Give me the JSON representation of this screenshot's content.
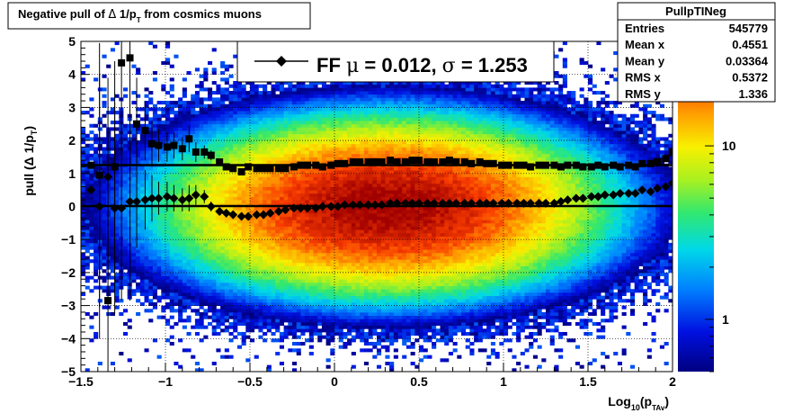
{
  "title": {
    "text": "Negative pull of ",
    "delta": "Δ",
    "text2": " 1/p",
    "sub": "T",
    "text3": " from cosmics muons"
  },
  "stats_box": {
    "name": "PullpTINeg",
    "rows": [
      {
        "label": "Entries",
        "value": "545779"
      },
      {
        "label": "Mean x",
        "value": "0.4551"
      },
      {
        "label": "Mean y",
        "value": "0.03364"
      },
      {
        "label": "RMS x",
        "value": "0.5372"
      },
      {
        "label": "RMS y",
        "value": "1.336"
      }
    ]
  },
  "legend": {
    "prefix": "FF ",
    "mu": "μ",
    "mid": " =  0.012, ",
    "sigma": "σ",
    "end": " =   1.253"
  },
  "chart_data": {
    "type": "heatmap",
    "xlabel": {
      "main": "Log",
      "sub1": "10",
      "paren_open": "(p",
      "sub2": "TAv",
      "paren_close": ")"
    },
    "ylabel": {
      "main": "pull (Δ 1/p",
      "sub": "T",
      "close": ")"
    },
    "xlim": [
      -1.5,
      2.0
    ],
    "ylim": [
      -5,
      5
    ],
    "x_ticks": [
      {
        "v": -1.5,
        "label": "−1.5"
      },
      {
        "v": -1.0,
        "label": "−1"
      },
      {
        "v": -0.5,
        "label": "−0.5"
      },
      {
        "v": 0.0,
        "label": "0"
      },
      {
        "v": 0.5,
        "label": "0.5"
      },
      {
        "v": 1.0,
        "label": "1"
      },
      {
        "v": 1.5,
        "label": "1.5"
      },
      {
        "v": 2.0,
        "label": "2"
      }
    ],
    "y_ticks": [
      {
        "v": -5,
        "label": "−5"
      },
      {
        "v": -4,
        "label": "−4"
      },
      {
        "v": -3,
        "label": "−3"
      },
      {
        "v": -2,
        "label": "−2"
      },
      {
        "v": -1,
        "label": "−1"
      },
      {
        "v": 0,
        "label": "0"
      },
      {
        "v": 1,
        "label": "1"
      },
      {
        "v": 2,
        "label": "2"
      },
      {
        "v": 3,
        "label": "3"
      },
      {
        "v": 4,
        "label": "4"
      },
      {
        "v": 5,
        "label": "5"
      }
    ],
    "colorbar": {
      "scale": "log",
      "min": 0.5,
      "max": 40,
      "ticks": [
        {
          "v": 1,
          "label": "1"
        },
        {
          "v": 10,
          "label": "10"
        }
      ]
    },
    "heatmap_model": {
      "center_x": 0.3,
      "width_x": 0.6,
      "sigma_y": 1.25,
      "peak": 40
    },
    "grid": true,
    "series": [
      {
        "marker": "square",
        "x": [
          -1.44,
          -1.39,
          -1.34,
          -1.3,
          -1.26,
          -1.21,
          -1.17,
          -1.12,
          -1.08,
          -1.04,
          -0.99,
          -0.95,
          -0.9,
          -0.86,
          -0.82,
          -0.77,
          -0.73,
          -0.68,
          -0.64,
          -0.6,
          -0.55,
          -0.51,
          -0.46,
          -0.42,
          -0.38,
          -0.33,
          -0.29,
          -0.24,
          -0.2,
          -0.16,
          -0.11,
          -0.07,
          -0.02,
          0.02,
          0.06,
          0.11,
          0.15,
          0.2,
          0.24,
          0.28,
          0.33,
          0.37,
          0.42,
          0.46,
          0.5,
          0.55,
          0.59,
          0.64,
          0.68,
          0.72,
          0.77,
          0.81,
          0.86,
          0.9,
          0.94,
          0.99,
          1.03,
          1.08,
          1.12,
          1.16,
          1.21,
          1.25,
          1.3,
          1.34,
          1.38,
          1.43,
          1.47,
          1.52,
          1.56,
          1.6,
          1.65,
          1.69,
          1.74,
          1.78,
          1.82,
          1.87,
          1.91,
          1.96,
          2.0
        ],
        "y": [
          1.25,
          0.95,
          -2.85,
          1.2,
          4.35,
          4.5,
          2.5,
          2.3,
          1.9,
          1.85,
          1.8,
          1.85,
          1.75,
          2.05,
          1.65,
          1.65,
          1.55,
          1.35,
          1.2,
          1.15,
          1.05,
          1.2,
          1.15,
          1.15,
          1.15,
          1.15,
          1.15,
          1.2,
          1.25,
          1.25,
          1.25,
          1.2,
          1.25,
          1.3,
          1.3,
          1.35,
          1.35,
          1.35,
          1.35,
          1.35,
          1.4,
          1.35,
          1.35,
          1.4,
          1.4,
          1.35,
          1.35,
          1.35,
          1.4,
          1.35,
          1.35,
          1.3,
          1.35,
          1.3,
          1.3,
          1.25,
          1.25,
          1.25,
          1.25,
          1.2,
          1.25,
          1.25,
          1.25,
          1.2,
          1.25,
          1.25,
          1.2,
          1.2,
          1.25,
          1.2,
          1.25,
          1.2,
          1.25,
          1.2,
          1.3,
          1.3,
          1.35,
          1.45,
          1.65
        ],
        "yerr": [
          0.1,
          4.0,
          3.0,
          3.2,
          2.8,
          3.0,
          1.4,
          0.9,
          0.7,
          0.5,
          0.45,
          0.4,
          0.35,
          0.4,
          0.3,
          0.2,
          0.15,
          0.1,
          0.1,
          0.08,
          0.06,
          0.05,
          0.05,
          0.04,
          0.04,
          0.03,
          0.03,
          0.03,
          0.03,
          0.03,
          0.02,
          0.02,
          0.02,
          0.02,
          0.02,
          0.02,
          0.02,
          0.02,
          0.02,
          0.02,
          0.02,
          0.02,
          0.02,
          0.02,
          0.02,
          0.02,
          0.02,
          0.02,
          0.02,
          0.02,
          0.02,
          0.02,
          0.02,
          0.02,
          0.02,
          0.02,
          0.02,
          0.03,
          0.03,
          0.03,
          0.03,
          0.03,
          0.03,
          0.04,
          0.04,
          0.04,
          0.05,
          0.05,
          0.06,
          0.06,
          0.07,
          0.07,
          0.08,
          0.08,
          0.09,
          0.1,
          0.1,
          0.1,
          0.12
        ]
      },
      {
        "marker": "diamond",
        "x": [
          -1.44,
          -1.39,
          -1.34,
          -1.3,
          -1.26,
          -1.21,
          -1.17,
          -1.12,
          -1.08,
          -1.04,
          -0.99,
          -0.95,
          -0.9,
          -0.86,
          -0.82,
          -0.77,
          -0.73,
          -0.68,
          -0.64,
          -0.6,
          -0.55,
          -0.51,
          -0.46,
          -0.42,
          -0.38,
          -0.33,
          -0.29,
          -0.24,
          -0.2,
          -0.16,
          -0.11,
          -0.07,
          -0.02,
          0.02,
          0.06,
          0.11,
          0.15,
          0.2,
          0.24,
          0.28,
          0.33,
          0.37,
          0.42,
          0.46,
          0.5,
          0.55,
          0.59,
          0.64,
          0.68,
          0.72,
          0.77,
          0.81,
          0.86,
          0.9,
          0.94,
          0.99,
          1.03,
          1.08,
          1.12,
          1.16,
          1.21,
          1.25,
          1.3,
          1.34,
          1.38,
          1.43,
          1.47,
          1.52,
          1.56,
          1.6,
          1.65,
          1.69,
          1.74,
          1.78,
          1.82,
          1.87,
          1.91,
          1.96,
          2.0
        ],
        "y": [
          0.5,
          0.0,
          0.9,
          -0.05,
          -0.05,
          0.15,
          0.15,
          0.2,
          0.25,
          0.25,
          0.3,
          0.25,
          0.2,
          0.25,
          0.35,
          0.3,
          0.0,
          -0.15,
          -0.2,
          -0.25,
          -0.3,
          -0.3,
          -0.25,
          -0.25,
          -0.2,
          -0.15,
          -0.1,
          -0.05,
          -0.05,
          -0.05,
          -0.05,
          0.0,
          0.0,
          0.0,
          0.05,
          0.05,
          0.05,
          0.05,
          0.05,
          0.05,
          0.1,
          0.1,
          0.1,
          0.1,
          0.1,
          0.1,
          0.1,
          0.1,
          0.1,
          0.1,
          0.1,
          0.1,
          0.1,
          0.1,
          0.1,
          0.1,
          0.1,
          0.1,
          0.1,
          0.1,
          0.1,
          0.1,
          0.1,
          0.15,
          0.2,
          0.25,
          0.25,
          0.3,
          0.3,
          0.35,
          0.35,
          0.4,
          0.4,
          0.4,
          0.5,
          0.45,
          0.55,
          0.6,
          0.7
        ],
        "yerr": [
          0.1,
          4.0,
          3.0,
          3.2,
          2.8,
          3.0,
          1.4,
          0.9,
          0.7,
          0.5,
          0.45,
          0.4,
          0.35,
          0.4,
          0.3,
          0.2,
          0.15,
          0.1,
          0.1,
          0.08,
          0.06,
          0.05,
          0.05,
          0.04,
          0.04,
          0.03,
          0.03,
          0.03,
          0.03,
          0.03,
          0.02,
          0.02,
          0.02,
          0.02,
          0.02,
          0.02,
          0.02,
          0.02,
          0.02,
          0.02,
          0.02,
          0.02,
          0.02,
          0.02,
          0.02,
          0.02,
          0.02,
          0.02,
          0.02,
          0.02,
          0.02,
          0.02,
          0.02,
          0.02,
          0.02,
          0.02,
          0.02,
          0.03,
          0.03,
          0.03,
          0.03,
          0.03,
          0.03,
          0.04,
          0.04,
          0.04,
          0.05,
          0.05,
          0.06,
          0.06,
          0.07,
          0.07,
          0.08,
          0.08,
          0.09,
          0.1,
          0.1,
          0.1,
          0.12
        ]
      }
    ],
    "fit_lines": [
      {
        "marker": "square",
        "y": 1.253
      },
      {
        "marker": "diamond",
        "y": 0.012
      }
    ]
  }
}
